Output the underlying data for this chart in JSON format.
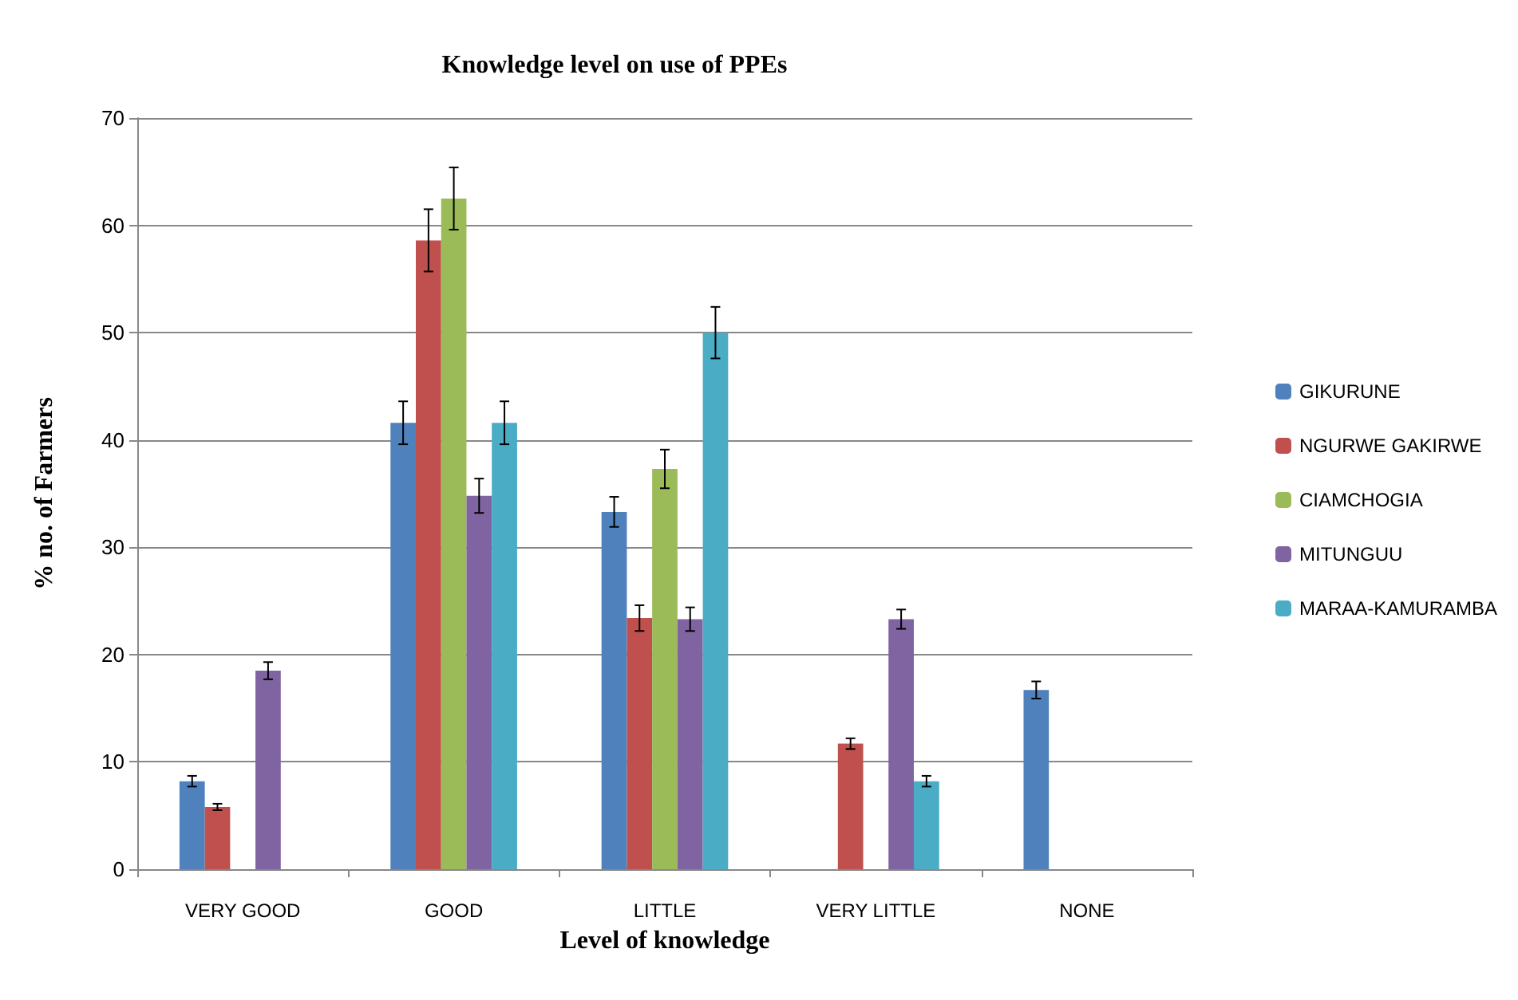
{
  "chart_data": {
    "type": "bar",
    "title": "Knowledge level on use of PPEs",
    "xlabel": "Level of knowledge",
    "ylabel": "% no. of Farmers",
    "categories": [
      "VERY GOOD",
      "GOOD",
      "LITTLE",
      "VERY LITTLE",
      "NONE"
    ],
    "series": [
      {
        "name": "GIKURUNE",
        "color": "#4f81bd",
        "values": [
          8.2,
          41.6,
          33.3,
          null,
          16.7
        ],
        "errors": [
          0.5,
          2.0,
          1.4,
          null,
          0.8
        ]
      },
      {
        "name": "NGURWE GAKIRWE",
        "color": "#c0504d",
        "values": [
          5.8,
          58.6,
          23.4,
          11.7,
          null
        ],
        "errors": [
          0.3,
          2.9,
          1.2,
          0.5,
          null
        ]
      },
      {
        "name": "CIAMCHOGIA",
        "color": "#9bbb59",
        "values": [
          null,
          62.5,
          37.3,
          null,
          null
        ],
        "errors": [
          null,
          2.9,
          1.8,
          null,
          null
        ]
      },
      {
        "name": "MITUNGUU",
        "color": "#8064a2",
        "values": [
          18.5,
          34.8,
          23.3,
          23.3,
          null
        ],
        "errors": [
          0.8,
          1.6,
          1.1,
          0.9,
          null
        ]
      },
      {
        "name": "MARAA-KAMURAMBA",
        "color": "#4bacc6",
        "values": [
          null,
          41.6,
          50.0,
          8.2,
          null
        ],
        "errors": [
          null,
          2.0,
          2.4,
          0.5,
          null
        ]
      }
    ],
    "ylim": [
      0,
      70
    ],
    "yticks": [
      0,
      10,
      20,
      30,
      40,
      50,
      60,
      70
    ],
    "grid": "y",
    "legend": "right"
  }
}
